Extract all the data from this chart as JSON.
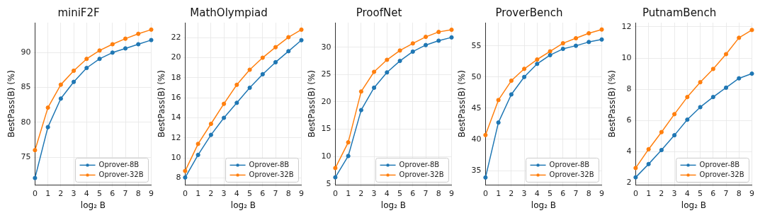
{
  "chart_data": [
    {
      "type": "line",
      "title": "miniF2F",
      "xlabel": "log₂ B",
      "ylabel": "BestPass(B) (%)",
      "x": [
        0,
        1,
        2,
        3,
        4,
        5,
        6,
        7,
        8,
        9
      ],
      "xlim": [
        0,
        9
      ],
      "xticks": [
        0,
        1,
        2,
        3,
        4,
        5,
        6,
        7,
        8,
        9
      ],
      "ylim": [
        71,
        94.3
      ],
      "yticks": [
        75,
        80,
        85,
        90
      ],
      "grid": true,
      "legend": "bottom right",
      "marker": "circle",
      "series": [
        {
          "name": "Oprover-8B",
          "color": "#1f77b4",
          "values": [
            72.0,
            79.3,
            83.4,
            85.8,
            87.8,
            89.1,
            90.0,
            90.6,
            91.2,
            91.8
          ]
        },
        {
          "name": "Oprover-32B",
          "color": "#ff7f0e",
          "values": [
            76.0,
            82.1,
            85.4,
            87.4,
            89.1,
            90.3,
            91.2,
            92.0,
            92.7,
            93.3
          ]
        }
      ]
    },
    {
      "type": "line",
      "title": "MathOlympiad",
      "xlabel": "log₂ B",
      "ylabel": "BestPass(B) (%)",
      "x": [
        0,
        1,
        2,
        3,
        4,
        5,
        6,
        7,
        8,
        9
      ],
      "xlim": [
        0,
        9
      ],
      "xticks": [
        0,
        1,
        2,
        3,
        4,
        5,
        6,
        7,
        8,
        9
      ],
      "ylim": [
        7.3,
        23.5
      ],
      "yticks": [
        8,
        10,
        12,
        14,
        16,
        18,
        20,
        22
      ],
      "grid": true,
      "legend": "bottom right",
      "marker": "circle",
      "series": [
        {
          "name": "Oprover-8B",
          "color": "#1f77b4",
          "values": [
            8.05,
            10.3,
            12.3,
            14.0,
            15.5,
            17.0,
            18.35,
            19.55,
            20.65,
            21.75
          ]
        },
        {
          "name": "Oprover-32B",
          "color": "#ff7f0e",
          "values": [
            8.7,
            11.4,
            13.4,
            15.4,
            17.3,
            18.8,
            20.0,
            21.05,
            22.05,
            22.8
          ]
        }
      ]
    },
    {
      "type": "line",
      "title": "ProofNet",
      "xlabel": "log₂ B",
      "ylabel": "BestPass(B) (%)",
      "x": [
        0,
        1,
        2,
        3,
        4,
        5,
        6,
        7,
        8,
        9
      ],
      "xlim": [
        0,
        9
      ],
      "xticks": [
        0,
        1,
        2,
        3,
        4,
        5,
        6,
        7,
        8,
        9
      ],
      "ylim": [
        4.8,
        34.5
      ],
      "yticks": [
        5,
        10,
        15,
        20,
        25,
        30
      ],
      "grid": true,
      "legend": "bottom right",
      "marker": "circle",
      "series": [
        {
          "name": "Oprover-8B",
          "color": "#1f77b4",
          "values": [
            6.2,
            10.1,
            18.5,
            22.6,
            25.4,
            27.5,
            29.2,
            30.4,
            31.2,
            31.8
          ]
        },
        {
          "name": "Oprover-32B",
          "color": "#ff7f0e",
          "values": [
            7.9,
            12.6,
            21.9,
            25.5,
            27.7,
            29.4,
            30.7,
            31.9,
            32.8,
            33.2
          ]
        }
      ]
    },
    {
      "type": "line",
      "title": "ProverBench",
      "xlabel": "log₂ B",
      "ylabel": "BestPass(B) (%)",
      "x": [
        0,
        1,
        2,
        3,
        4,
        5,
        6,
        7,
        8,
        9
      ],
      "xlim": [
        0,
        9
      ],
      "xticks": [
        0,
        1,
        2,
        3,
        4,
        5,
        6,
        7,
        8,
        9
      ],
      "ylim": [
        32.7,
        58.7
      ],
      "yticks": [
        35,
        40,
        45,
        50,
        55
      ],
      "grid": true,
      "legend": "bottom right",
      "marker": "circle",
      "series": [
        {
          "name": "Oprover-8B",
          "color": "#1f77b4",
          "values": [
            33.9,
            42.7,
            47.2,
            50.0,
            52.1,
            53.5,
            54.5,
            55.0,
            55.6,
            56.0
          ]
        },
        {
          "name": "Oprover-32B",
          "color": "#ff7f0e",
          "values": [
            40.7,
            46.3,
            49.4,
            51.3,
            52.8,
            54.1,
            55.4,
            56.2,
            57.0,
            57.6
          ]
        }
      ]
    },
    {
      "type": "line",
      "title": "PutnamBench",
      "xlabel": "log₂ B",
      "ylabel": "BestPass(B) (%)",
      "x": [
        0,
        1,
        2,
        3,
        4,
        5,
        6,
        7,
        8,
        9
      ],
      "xlim": [
        0,
        9
      ],
      "xticks": [
        0,
        1,
        2,
        3,
        4,
        5,
        6,
        7,
        8,
        9
      ],
      "ylim": [
        1.86,
        12.27
      ],
      "yticks": [
        2,
        4,
        6,
        8,
        10,
        12
      ],
      "grid": true,
      "legend": "bottom right",
      "marker": "circle",
      "series": [
        {
          "name": "Oprover-8B",
          "color": "#1f77b4",
          "values": [
            2.35,
            3.2,
            4.1,
            5.05,
            6.05,
            6.85,
            7.5,
            8.1,
            8.7,
            9.0
          ]
        },
        {
          "name": "Oprover-32B",
          "color": "#ff7f0e",
          "values": [
            2.95,
            4.15,
            5.25,
            6.4,
            7.5,
            8.45,
            9.3,
            10.25,
            11.3,
            11.8
          ]
        }
      ]
    }
  ]
}
